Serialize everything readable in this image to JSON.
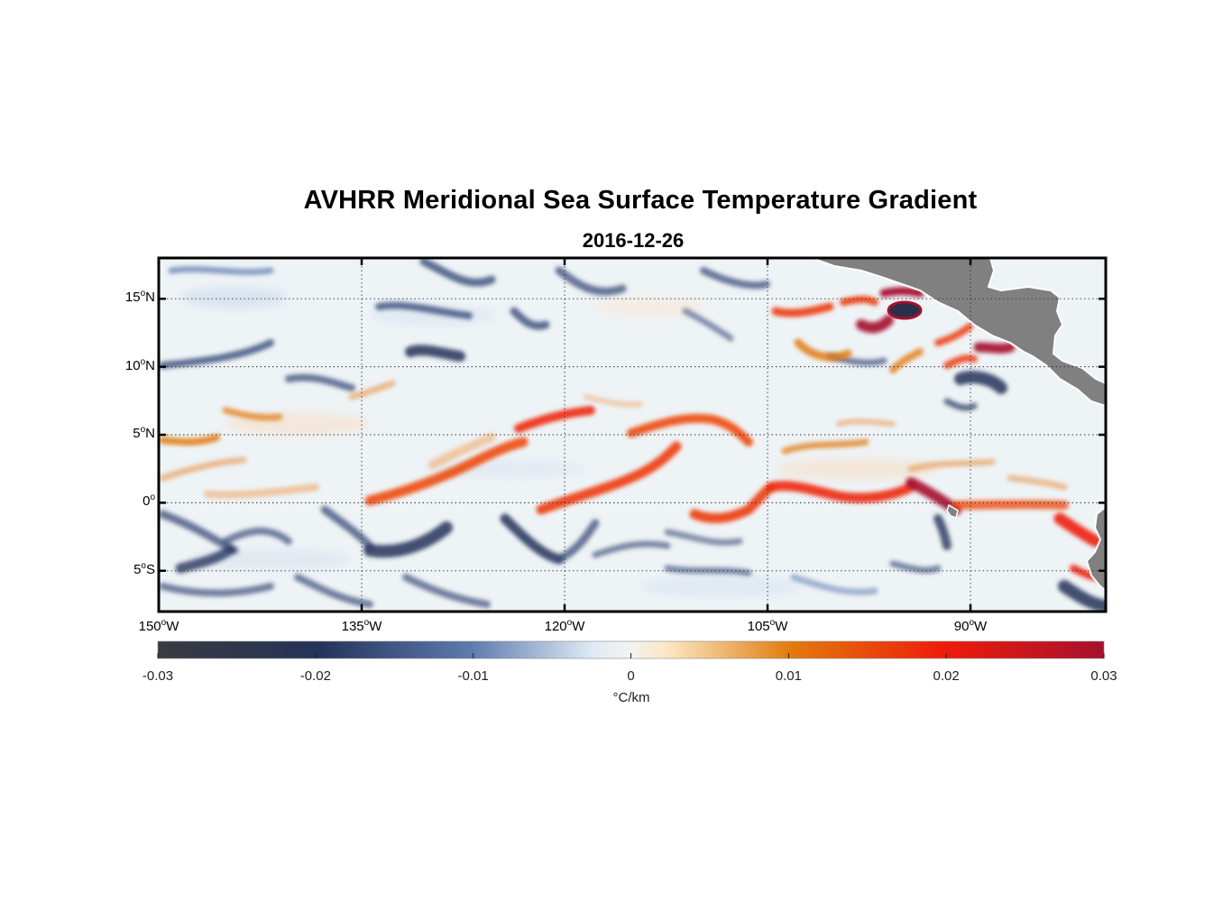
{
  "title": "AVHRR Meridional Sea Surface Temperature Gradient",
  "subtitle": "2016-12-26",
  "lat_ticks": [
    {
      "value": 15,
      "num": "15",
      "hemi": "N"
    },
    {
      "value": 10,
      "num": "10",
      "hemi": "N"
    },
    {
      "value": 5,
      "num": "5",
      "hemi": "N"
    },
    {
      "value": 0,
      "num": "0",
      "hemi": ""
    },
    {
      "value": -5,
      "num": "5",
      "hemi": "S"
    }
  ],
  "lon_ticks": [
    {
      "value": -150,
      "num": "150",
      "hemi": "W"
    },
    {
      "value": -135,
      "num": "135",
      "hemi": "W"
    },
    {
      "value": -120,
      "num": "120",
      "hemi": "W"
    },
    {
      "value": -105,
      "num": "105",
      "hemi": "W"
    },
    {
      "value": -90,
      "num": "90",
      "hemi": "W"
    }
  ],
  "map_extent": {
    "lon": [
      -150,
      -80
    ],
    "lat": [
      -8,
      18
    ]
  },
  "colorbar": {
    "ticks": [
      "-0.03",
      "-0.02",
      "-0.01",
      "0",
      "0.01",
      "0.02",
      "0.03"
    ],
    "range": [
      -0.03,
      0.03
    ],
    "unit": "°C/km",
    "colors": [
      "#3a3b40",
      "#24335a",
      "#5d7aae",
      "#e8f1f7",
      "#fbe6c2",
      "#e27a0c",
      "#ee1c0a",
      "#a6102e"
    ]
  },
  "land_color": "#808080",
  "grid": "dotted"
}
